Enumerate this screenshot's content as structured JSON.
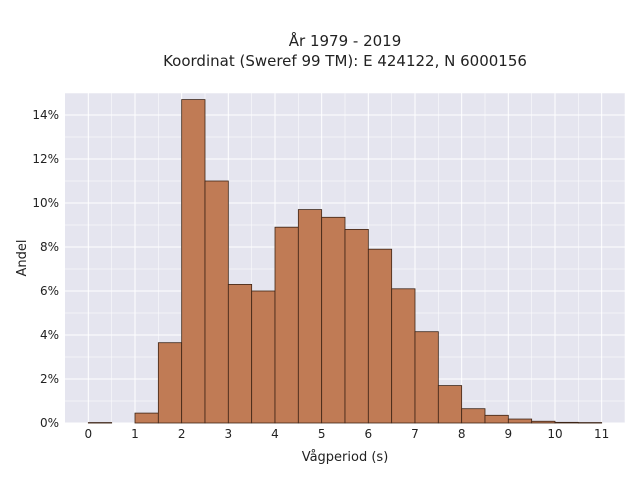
{
  "chart_data": {
    "type": "bar",
    "title_lines": [
      "År 1979 - 2019",
      "Koordinat (Sweref 99 TM): E 424122, N 6000156"
    ],
    "xlabel": "Vågperiod (s)",
    "ylabel": "Andel",
    "xlim": [
      -0.5,
      11.5
    ],
    "ylim": [
      0,
      15
    ],
    "x_ticks": [
      0,
      1,
      2,
      3,
      4,
      5,
      6,
      7,
      8,
      9,
      10,
      11
    ],
    "y_ticks": [
      0,
      2,
      4,
      6,
      8,
      10,
      12,
      14
    ],
    "y_tick_suffix": "%",
    "bin_width": 0.5,
    "bins": [
      {
        "x0": 0.0,
        "value": 0.02
      },
      {
        "x0": 1.0,
        "value": 0.45
      },
      {
        "x0": 1.5,
        "value": 3.65
      },
      {
        "x0": 2.0,
        "value": 14.7
      },
      {
        "x0": 2.5,
        "value": 11.0
      },
      {
        "x0": 3.0,
        "value": 6.3
      },
      {
        "x0": 3.5,
        "value": 6.0
      },
      {
        "x0": 4.0,
        "value": 8.9
      },
      {
        "x0": 4.5,
        "value": 9.7
      },
      {
        "x0": 5.0,
        "value": 9.35
      },
      {
        "x0": 5.5,
        "value": 8.8
      },
      {
        "x0": 6.0,
        "value": 7.9
      },
      {
        "x0": 6.5,
        "value": 6.1
      },
      {
        "x0": 7.0,
        "value": 4.15
      },
      {
        "x0": 7.5,
        "value": 1.7
      },
      {
        "x0": 8.0,
        "value": 0.65
      },
      {
        "x0": 8.5,
        "value": 0.35
      },
      {
        "x0": 9.0,
        "value": 0.18
      },
      {
        "x0": 9.5,
        "value": 0.08
      },
      {
        "x0": 10.0,
        "value": 0.03
      },
      {
        "x0": 10.5,
        "value": 0.02
      }
    ],
    "grid": true,
    "bar_color": "#c07b55",
    "bar_edge_color": "#3d2415",
    "plot_background": "#e5e5ef",
    "grid_color": "#ffffff"
  }
}
